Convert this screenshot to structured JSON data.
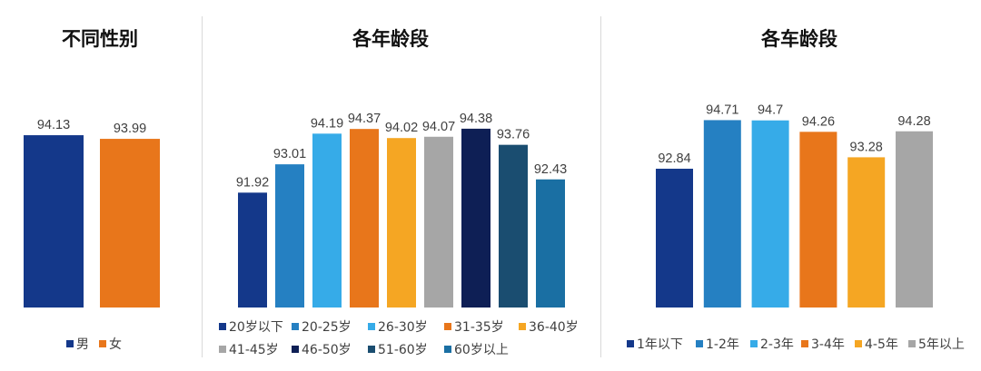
{
  "chart_data": [
    {
      "type": "bar",
      "title": "不同性别",
      "categories": [
        "男",
        "女"
      ],
      "values": [
        94.13,
        93.99
      ],
      "colors": [
        "#14388a",
        "#e8761b"
      ],
      "value_labels": [
        "94.13",
        "93.99"
      ],
      "ylim": [
        87.5,
        95.0
      ]
    },
    {
      "type": "bar",
      "title": "各年龄段",
      "categories": [
        "20岁以下",
        "20-25岁",
        "26-30岁",
        "31-35岁",
        "36-40岁",
        "41-45岁",
        "46-50岁",
        "51-60岁",
        "60岁以上"
      ],
      "values": [
        91.92,
        93.01,
        94.19,
        94.37,
        94.02,
        94.07,
        94.38,
        93.76,
        92.43
      ],
      "colors": [
        "#14388a",
        "#2580c2",
        "#36abe8",
        "#e8761b",
        "#f5a623",
        "#a6a6a6",
        "#0e1f55",
        "#1a4d70",
        "#1a6fa3"
      ],
      "value_labels": [
        "91.92",
        "93.01",
        "94.19",
        "94.37",
        "94.02",
        "94.07",
        "94.38",
        "93.76",
        "92.43"
      ],
      "ylim": [
        87.5,
        95.0
      ]
    },
    {
      "type": "bar",
      "title": "各车龄段",
      "categories": [
        "1年以下",
        "1-2年",
        "2-3年",
        "3-4年",
        "4-5年",
        "5年以上"
      ],
      "values": [
        92.84,
        94.71,
        94.7,
        94.26,
        93.28,
        94.28
      ],
      "colors": [
        "#14388a",
        "#2580c2",
        "#36abe8",
        "#e8761b",
        "#f5a623",
        "#a6a6a6"
      ],
      "value_labels": [
        "92.84",
        "94.71",
        "94.7",
        "94.26",
        "93.28",
        "94.28"
      ],
      "ylim": [
        87.5,
        95.0
      ]
    }
  ]
}
